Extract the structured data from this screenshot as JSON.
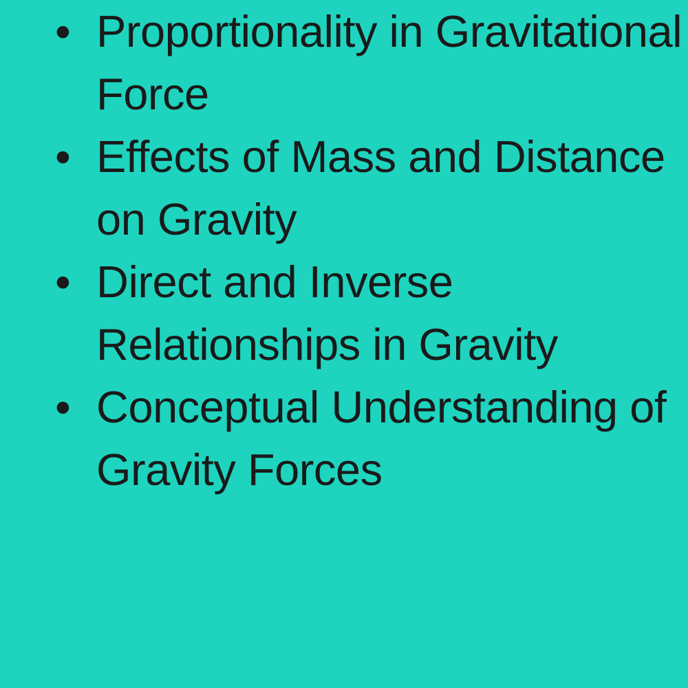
{
  "background_color": "#1ed4bf",
  "text_color": "#1a1a1a",
  "font_size": 65,
  "line_height": 1.4,
  "list": {
    "items": [
      "Proportionality in Gravitational Force",
      "Effects of Mass and Distance on Gravity",
      "Direct and Inverse Relationships in Gravity",
      "Conceptual Understanding of Gravity Forces"
    ]
  }
}
